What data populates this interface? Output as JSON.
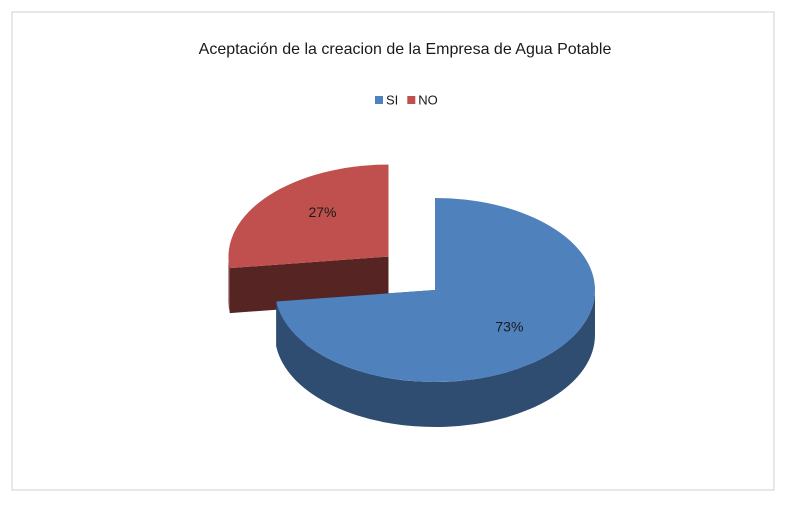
{
  "chart_data": {
    "type": "pie",
    "title": "Aceptación de la creacion de la Empresa de Agua Potable",
    "categories": [
      "SI",
      "NO"
    ],
    "values": [
      73,
      27
    ],
    "value_labels": [
      "73%",
      "27%"
    ],
    "colors": [
      "#4f81bd",
      "#c0504d"
    ],
    "legend": "top"
  }
}
